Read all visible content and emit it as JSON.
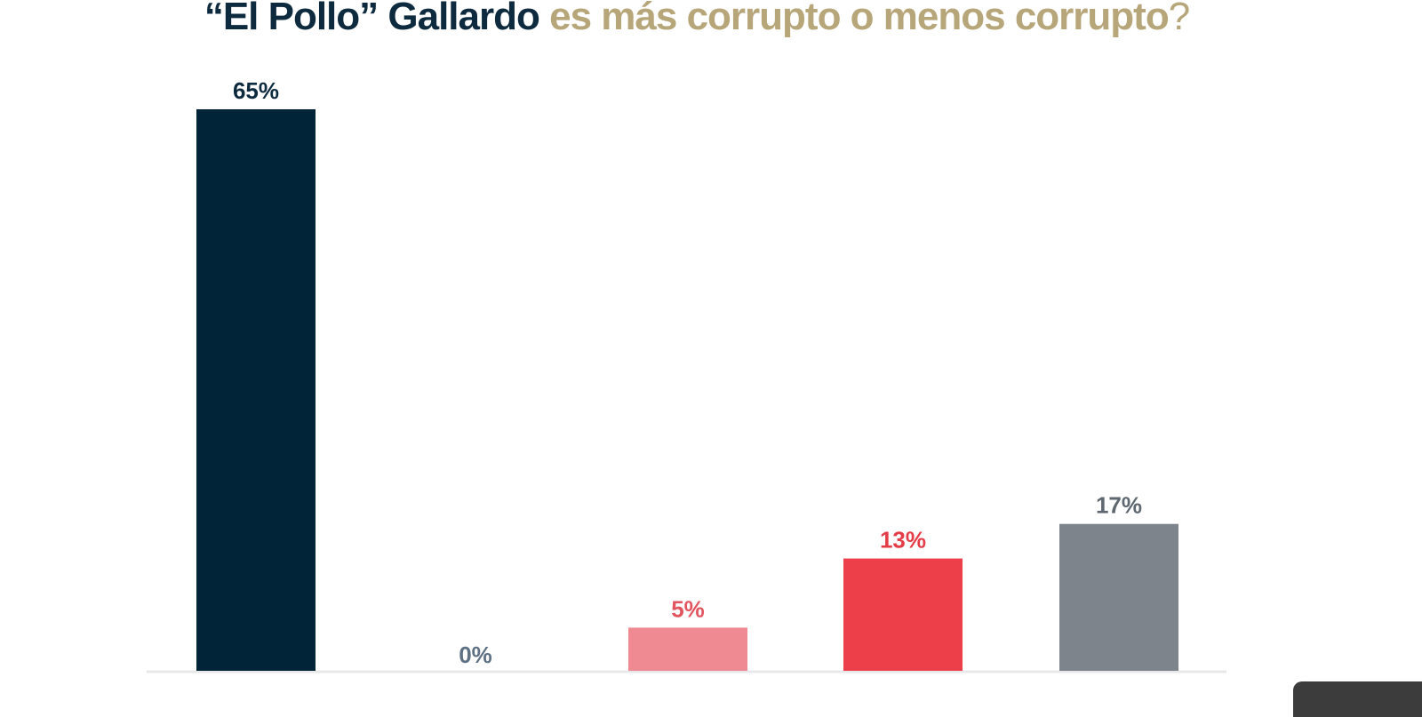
{
  "title": {
    "part1": "“El Pollo” Gallardo",
    "part2": " es más corrupto o menos corrupto",
    "part3": "?"
  },
  "colors": {
    "title_dark": "#0e2a3f",
    "title_gold": "#b7a67a"
  },
  "chart_data": {
    "type": "bar",
    "title": "“El Pollo” Gallardo es más corrupto o menos corrupto?",
    "categories": [
      "",
      "",
      "",
      "",
      ""
    ],
    "values": [
      65,
      0,
      5,
      13,
      17
    ],
    "value_labels": [
      "65%",
      "0%",
      "5%",
      "13%",
      "17%"
    ],
    "bar_colors": [
      "#022438",
      "#7b8da0",
      "#f08a92",
      "#ec3f4a",
      "#7d848b"
    ],
    "label_colors": [
      "#0e2a3f",
      "#5e7184",
      "#e2555f",
      "#e43d47",
      "#5f6770"
    ],
    "ylim": [
      0,
      70
    ],
    "grid": false,
    "xlabel": "",
    "ylabel": ""
  }
}
